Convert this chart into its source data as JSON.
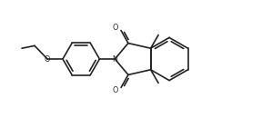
{
  "bg_color": "#ffffff",
  "line_color": "#222222",
  "line_width": 1.2,
  "figsize": [
    2.88,
    1.3
  ],
  "dpi": 100,
  "xlim": [
    0,
    10.2
  ],
  "ylim": [
    0.5,
    5.0
  ]
}
